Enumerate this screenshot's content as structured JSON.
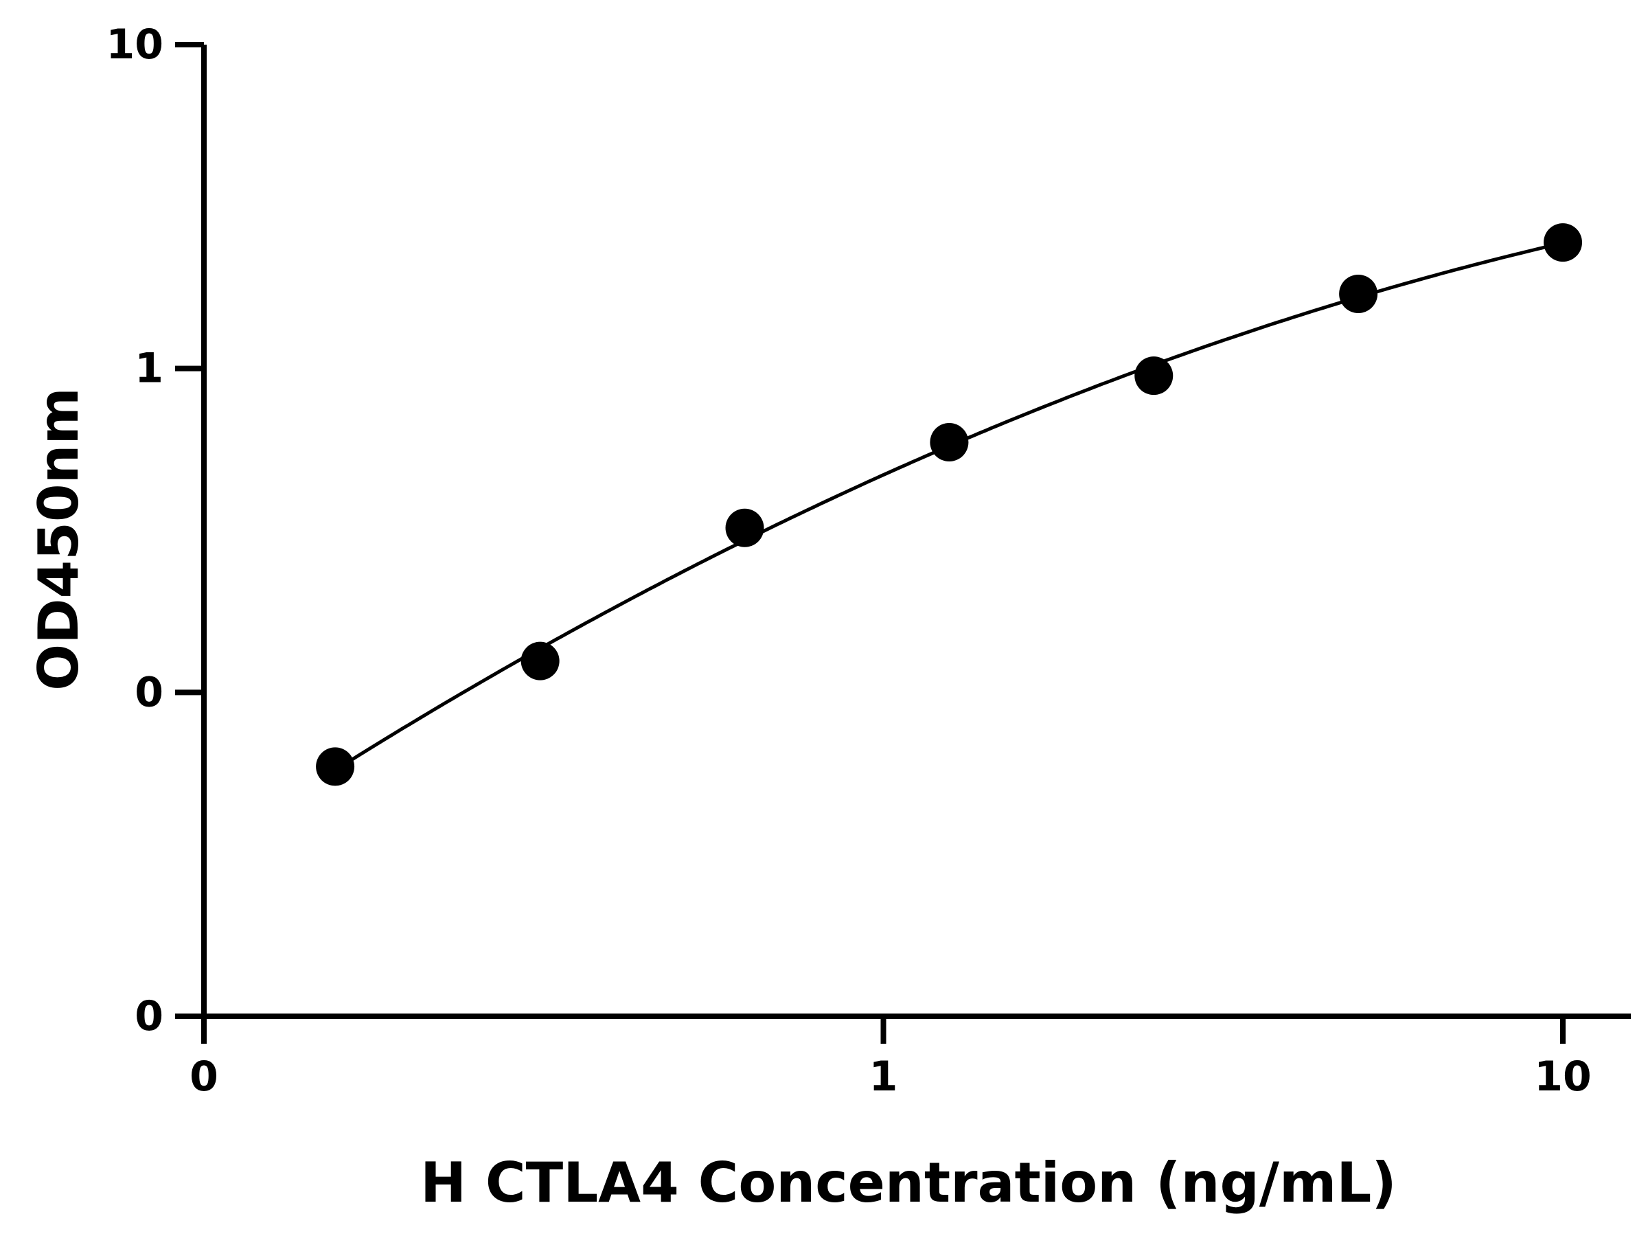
{
  "chart_data": {
    "type": "scatter",
    "title": "",
    "xlabel": "H CTLA4 Concentration (ng/mL)",
    "ylabel": "OD450nm",
    "x_scale": "log",
    "y_scale": "log",
    "xlim": [
      0.1,
      10
    ],
    "ylim": [
      0.01,
      10
    ],
    "x_ticks": [
      {
        "value": 0.1,
        "label": "0"
      },
      {
        "value": 1,
        "label": "1"
      },
      {
        "value": 10,
        "label": "10"
      }
    ],
    "y_ticks": [
      {
        "value": 0.01,
        "label": "0"
      },
      {
        "value": 0.1,
        "label": "0"
      },
      {
        "value": 1,
        "label": "1"
      },
      {
        "value": 10,
        "label": "10"
      }
    ],
    "grid": false,
    "series": [
      {
        "points": [
          {
            "x": 0.156,
            "y": 0.059
          },
          {
            "x": 0.3125,
            "y": 0.125
          },
          {
            "x": 0.625,
            "y": 0.322
          },
          {
            "x": 1.25,
            "y": 0.592
          },
          {
            "x": 2.5,
            "y": 0.95
          },
          {
            "x": 5,
            "y": 1.7
          },
          {
            "x": 10,
            "y": 2.45
          }
        ],
        "color": "#000000"
      }
    ]
  }
}
